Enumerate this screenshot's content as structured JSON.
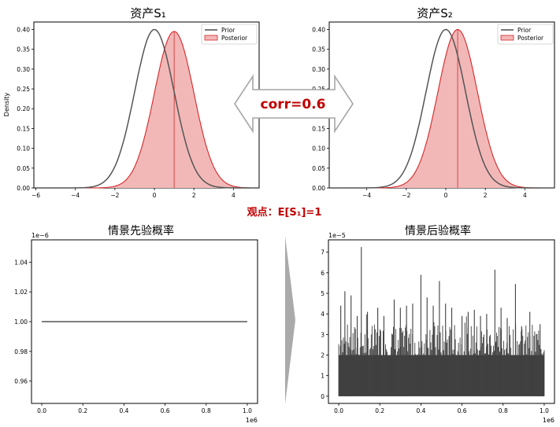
{
  "figure": {
    "center_arrow_label": "corr=0.6",
    "view_label": "观点：E[S₁]=1",
    "colors": {
      "prior": "#555555",
      "posterior_line": "#d62728",
      "posterior_fill": "#f2b8b8",
      "arrow_text": "#c00000",
      "histogram": "#404040",
      "right_arrow": "#aaaaaa"
    }
  },
  "chart_data": [
    {
      "type": "area",
      "title": "资产S₁",
      "ylabel": "Density",
      "xlabel": "",
      "xlim": [
        -6.1,
        5.3
      ],
      "ylim": [
        0,
        0.4
      ],
      "xticks": [
        "−6",
        "−4",
        "−2",
        "0",
        "2",
        "4"
      ],
      "yticks": [
        "0.00",
        "0.05",
        "0.10",
        "0.15",
        "0.20",
        "0.25",
        "0.30",
        "0.35",
        "0.40"
      ],
      "legend": {
        "position": "top-right",
        "entries": [
          "Prior",
          "Posterior"
        ]
      },
      "series": [
        {
          "name": "Prior",
          "kind": "line",
          "mean": 0,
          "sd": 1,
          "peak": 0.4
        },
        {
          "name": "Posterior",
          "kind": "filled",
          "mean": 1,
          "sd": 1,
          "peak": 0.395,
          "mean_line": 1
        }
      ]
    },
    {
      "type": "area",
      "title": "资产S₂",
      "ylabel": "",
      "xlabel": "",
      "xlim": [
        -5.9,
        5.5
      ],
      "ylim": [
        0,
        0.4
      ],
      "xticks": [
        "−4",
        "−2",
        "0",
        "2",
        "4"
      ],
      "yticks": [
        "0.00",
        "0.05",
        "0.10",
        "0.15",
        "0.20",
        "0.25",
        "0.30",
        "0.35",
        "0.40"
      ],
      "legend": {
        "position": "top-right",
        "entries": [
          "Prior",
          "Posterior"
        ]
      },
      "series": [
        {
          "name": "Prior",
          "kind": "line",
          "mean": 0,
          "sd": 1,
          "peak": 0.4
        },
        {
          "name": "Posterior",
          "kind": "filled",
          "mean": 0.6,
          "sd": 1,
          "peak": 0.4,
          "mean_line": 0.6
        }
      ]
    },
    {
      "type": "line",
      "title": "情景先验概率",
      "offset_label": "1e−6",
      "x_offset_label": "1e6",
      "xlim": [
        -0.05,
        1.05
      ],
      "ylim": [
        0.945,
        1.055
      ],
      "xticks": [
        "0.0",
        "0.2",
        "0.4",
        "0.6",
        "0.8",
        "1.0"
      ],
      "yticks": [
        "0.96",
        "0.98",
        "1.00",
        "1.02",
        "1.04"
      ],
      "series": [
        {
          "x": [
            0,
            1
          ],
          "y": [
            1.0,
            1.0
          ]
        }
      ]
    },
    {
      "type": "bar",
      "title": "情景后验概率",
      "offset_label": "1e−5",
      "x_offset_label": "1e6",
      "xlim": [
        -0.05,
        1.05
      ],
      "ylim": [
        -0.35,
        7.6
      ],
      "xticks": [
        "0.0",
        "0.2",
        "0.4",
        "0.6",
        "0.8",
        "1.0"
      ],
      "yticks": [
        "0",
        "1",
        "2",
        "3",
        "4",
        "5",
        "6",
        "7"
      ],
      "spikes": [
        [
          0.01,
          4.4
        ],
        [
          0.03,
          5.1
        ],
        [
          0.06,
          4.9
        ],
        [
          0.09,
          3.9
        ],
        [
          0.11,
          7.25
        ],
        [
          0.14,
          4.1
        ],
        [
          0.19,
          4.3
        ],
        [
          0.22,
          3.9
        ],
        [
          0.27,
          4.7
        ],
        [
          0.3,
          4.3
        ],
        [
          0.33,
          4.4
        ],
        [
          0.36,
          4.5
        ],
        [
          0.4,
          5.9
        ],
        [
          0.43,
          4.8
        ],
        [
          0.46,
          4.4
        ],
        [
          0.49,
          5.6
        ],
        [
          0.52,
          4.5
        ],
        [
          0.55,
          4.3
        ],
        [
          0.6,
          3.9
        ],
        [
          0.63,
          4.1
        ],
        [
          0.66,
          4.2
        ],
        [
          0.69,
          3.9
        ],
        [
          0.72,
          4.0
        ],
        [
          0.76,
          6.15
        ],
        [
          0.79,
          4.3
        ],
        [
          0.82,
          3.8
        ],
        [
          0.86,
          5.45
        ],
        [
          0.89,
          3.4
        ],
        [
          0.93,
          4.1
        ],
        [
          0.98,
          3.5
        ]
      ],
      "baseline_band": [
        0,
        2
      ]
    }
  ]
}
